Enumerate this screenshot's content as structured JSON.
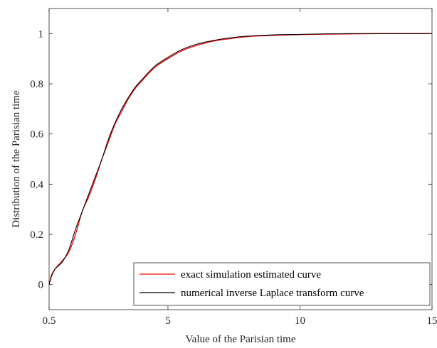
{
  "colors": {
    "series_exact": "#ff0000",
    "series_numerical": "#000000",
    "axes": "#262626",
    "background": "#ffffff"
  },
  "chart_data": {
    "type": "line",
    "title": "",
    "xlabel": "Value of the Parisian time",
    "ylabel": "Distribution of the Parisian time",
    "xlim": [
      0.5,
      15
    ],
    "ylim": [
      -0.1,
      1.1
    ],
    "xticks": [
      0.5,
      5,
      10,
      15
    ],
    "xtick_labels": [
      "0.5",
      "5",
      "10",
      "15"
    ],
    "yticks": [
      0,
      0.2,
      0.4,
      0.6,
      0.8,
      1
    ],
    "ytick_labels": [
      "0",
      "0.2",
      "0.4",
      "0.6",
      "0.8",
      "1"
    ],
    "grid": false,
    "box": true,
    "legend_position": "bottom-right",
    "series": [
      {
        "name": "exact simulation estimated curve",
        "color": "#ff0000",
        "x": [
          0.5,
          0.6,
          0.75,
          1.0,
          1.25,
          1.5,
          1.75,
          2.0,
          2.25,
          2.5,
          2.75,
          3.0,
          3.25,
          3.5,
          3.75,
          4.0,
          4.5,
          5.0,
          5.5,
          6.0,
          6.5,
          7.0,
          7.5,
          8.0,
          9.0,
          10.0,
          11.0,
          12.0,
          13.0,
          14.0,
          15.0
        ],
        "y": [
          0.0,
          0.035,
          0.065,
          0.095,
          0.13,
          0.2,
          0.29,
          0.35,
          0.42,
          0.5,
          0.57,
          0.64,
          0.69,
          0.74,
          0.78,
          0.81,
          0.865,
          0.9,
          0.93,
          0.95,
          0.965,
          0.975,
          0.982,
          0.988,
          0.993,
          0.996,
          0.998,
          0.999,
          1.0,
          1.0,
          1.0
        ]
      },
      {
        "name": "numerical inverse Laplace transform curve",
        "color": "#000000",
        "x": [
          0.5,
          0.6,
          0.75,
          1.0,
          1.25,
          1.5,
          1.75,
          2.0,
          2.25,
          2.5,
          2.75,
          3.0,
          3.25,
          3.5,
          3.75,
          4.0,
          4.5,
          5.0,
          5.5,
          6.0,
          6.5,
          7.0,
          7.5,
          8.0,
          9.0,
          10.0,
          11.0,
          12.0,
          13.0,
          14.0,
          15.0
        ],
        "y": [
          0.0,
          0.04,
          0.065,
          0.09,
          0.14,
          0.22,
          0.29,
          0.36,
          0.43,
          0.5,
          0.58,
          0.645,
          0.7,
          0.745,
          0.785,
          0.815,
          0.87,
          0.905,
          0.935,
          0.955,
          0.968,
          0.978,
          0.985,
          0.99,
          0.995,
          0.997,
          0.999,
          1.0,
          1.0,
          1.0,
          1.0
        ]
      }
    ]
  }
}
